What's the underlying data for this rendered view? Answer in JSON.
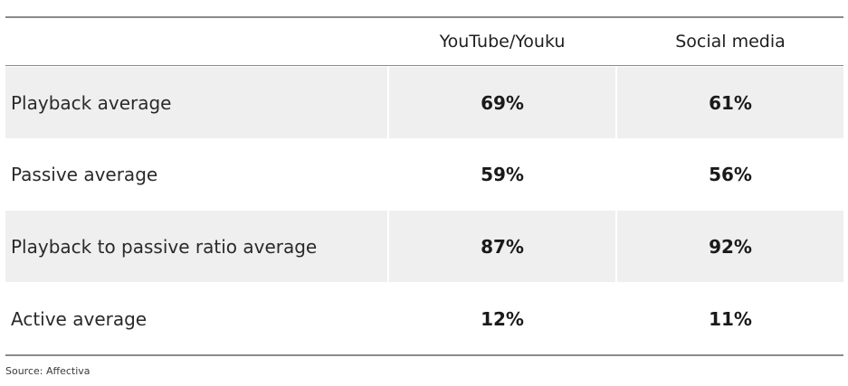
{
  "chart_data": {
    "type": "table",
    "columns": [
      "",
      "YouTube/Youku",
      "Social media"
    ],
    "rows": [
      {
        "label": "Playback average",
        "values": [
          "69%",
          "61%"
        ]
      },
      {
        "label": "Passive average",
        "values": [
          "59%",
          "56%"
        ]
      },
      {
        "label": "Playback to passive ratio average",
        "values": [
          "87%",
          "92%"
        ]
      },
      {
        "label": "Active average",
        "values": [
          "12%",
          "11%"
        ]
      }
    ],
    "source": "Source: Affectiva",
    "colors": {
      "shaded_row": "#efefef",
      "rule": "#8a8a8a",
      "text": "#1f1f1f"
    }
  }
}
